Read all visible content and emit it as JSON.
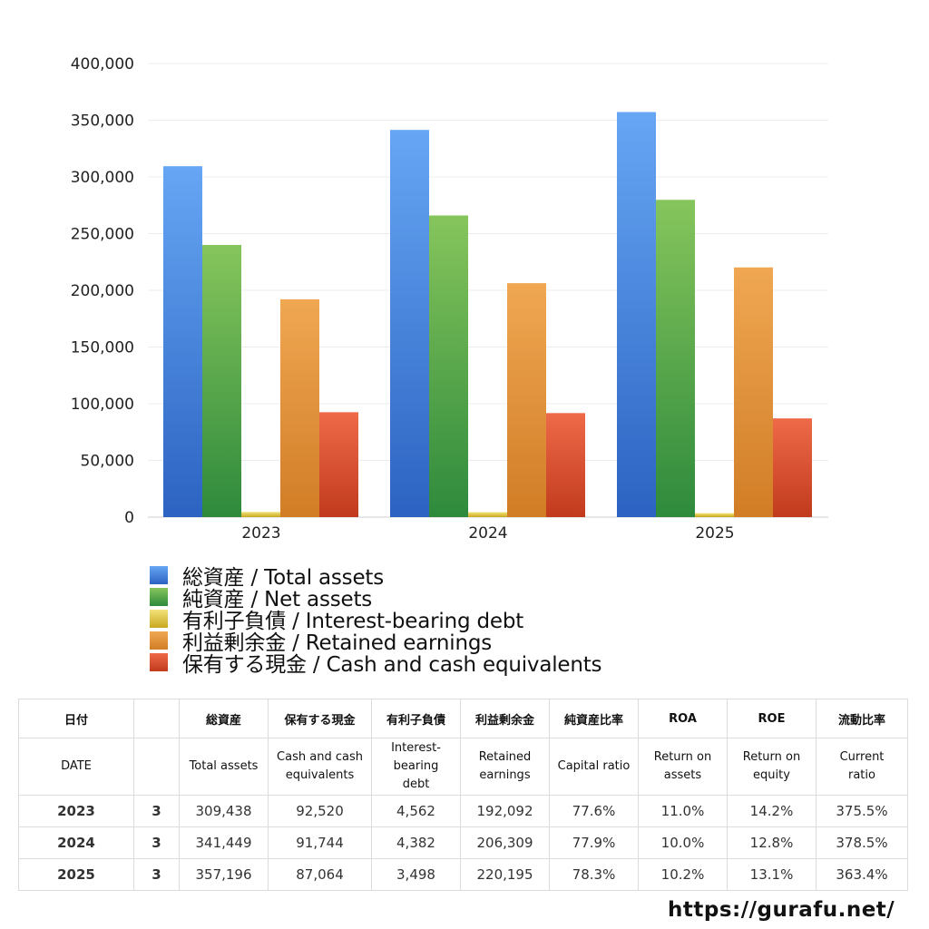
{
  "chart_data": {
    "type": "bar",
    "categories": [
      "2023",
      "2024",
      "2025"
    ],
    "series": [
      {
        "name": "総資産 / Total assets",
        "values": [
          309438,
          341449,
          357196
        ],
        "color_top": "#66a6f4",
        "color_bottom": "#2c63c2"
      },
      {
        "name": "純資産 / Net assets",
        "values": [
          240000,
          266000,
          279800
        ],
        "color_top": "#86c55c",
        "color_bottom": "#2e8a3c"
      },
      {
        "name": "有利子負債 / Interest-bearing debt",
        "values": [
          4562,
          4382,
          3498
        ],
        "color_top": "#f2e27a",
        "color_bottom": "#c9a81f"
      },
      {
        "name": "利益剰余金 / Retained earnings",
        "values": [
          192092,
          206309,
          220195
        ],
        "color_top": "#f0a752",
        "color_bottom": "#d17d26"
      },
      {
        "name": "保有する現金 /  Cash and cash equivalents",
        "values": [
          92520,
          91744,
          87064
        ],
        "color_top": "#ee6a48",
        "color_bottom": "#c13a1d"
      }
    ],
    "y_ticks": [
      "400,000",
      "350,000",
      "300,000",
      "250,000",
      "200,000",
      "150,000",
      "100,000",
      "50,000",
      "0"
    ],
    "ylim": [
      0,
      400000
    ],
    "grid": true,
    "legend_position": "bottom"
  },
  "table": {
    "header_jp": [
      "日付",
      "",
      "総資産",
      "保有する現金",
      "有利子負債",
      "利益剰余金",
      "純資産比率",
      "ROA",
      "ROE",
      "流動比率"
    ],
    "header_en": [
      [
        "DATE"
      ],
      [
        ""
      ],
      [
        "Total assets"
      ],
      [
        "Cash and cash",
        "equivalents"
      ],
      [
        "Interest-",
        "bearing",
        "debt"
      ],
      [
        "Retained",
        "earnings"
      ],
      [
        "Capital ratio"
      ],
      [
        "Return on",
        "assets"
      ],
      [
        "Return on",
        "equity"
      ],
      [
        "Current",
        "ratio"
      ]
    ],
    "rows": [
      [
        "2023",
        "3",
        "309,438",
        "92,520",
        "4,562",
        "192,092",
        "77.6%",
        "11.0%",
        "14.2%",
        "375.5%"
      ],
      [
        "2024",
        "3",
        "341,449",
        "91,744",
        "4,382",
        "206,309",
        "77.9%",
        "10.0%",
        "12.8%",
        "378.5%"
      ],
      [
        "2025",
        "3",
        "357,196",
        "87,064",
        "3,498",
        "220,195",
        "78.3%",
        "10.2%",
        "13.1%",
        "363.4%"
      ]
    ]
  },
  "footer": {
    "url": "https://gurafu.net/"
  }
}
